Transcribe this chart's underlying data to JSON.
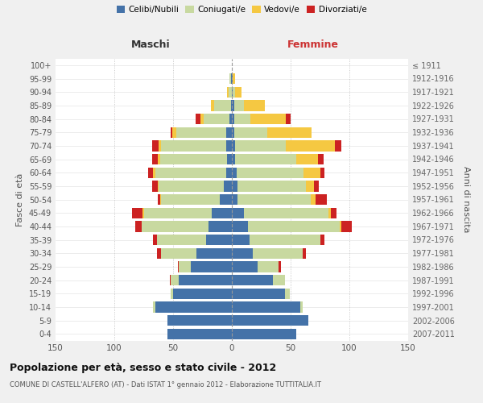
{
  "age_groups": [
    "0-4",
    "5-9",
    "10-14",
    "15-19",
    "20-24",
    "25-29",
    "30-34",
    "35-39",
    "40-44",
    "45-49",
    "50-54",
    "55-59",
    "60-64",
    "65-69",
    "70-74",
    "75-79",
    "80-84",
    "85-89",
    "90-94",
    "95-99",
    "100+"
  ],
  "birth_years": [
    "2007-2011",
    "2002-2006",
    "1997-2001",
    "1992-1996",
    "1987-1991",
    "1982-1986",
    "1977-1981",
    "1972-1976",
    "1967-1971",
    "1962-1966",
    "1957-1961",
    "1952-1956",
    "1947-1951",
    "1942-1946",
    "1937-1941",
    "1932-1936",
    "1927-1931",
    "1922-1926",
    "1917-1921",
    "1912-1916",
    "≤ 1911"
  ],
  "males": {
    "celibi": [
      55,
      55,
      65,
      50,
      45,
      35,
      30,
      22,
      20,
      17,
      10,
      7,
      5,
      4,
      5,
      5,
      2,
      1,
      0,
      1,
      0
    ],
    "coniugati": [
      0,
      0,
      2,
      2,
      7,
      10,
      30,
      42,
      57,
      58,
      50,
      55,
      60,
      57,
      55,
      42,
      22,
      14,
      3,
      1,
      0
    ],
    "vedovi": [
      0,
      0,
      0,
      0,
      0,
      0,
      0,
      0,
      0,
      1,
      1,
      1,
      2,
      2,
      2,
      4,
      3,
      3,
      1,
      0,
      0
    ],
    "divorziati": [
      0,
      0,
      0,
      0,
      1,
      1,
      4,
      3,
      5,
      9,
      2,
      5,
      4,
      5,
      6,
      1,
      4,
      0,
      0,
      0,
      0
    ]
  },
  "females": {
    "nubili": [
      55,
      65,
      58,
      45,
      35,
      22,
      18,
      15,
      14,
      10,
      5,
      5,
      4,
      3,
      3,
      2,
      2,
      2,
      1,
      1,
      0
    ],
    "coniugate": [
      0,
      0,
      2,
      4,
      10,
      18,
      42,
      60,
      78,
      72,
      62,
      58,
      57,
      52,
      43,
      28,
      14,
      8,
      2,
      0,
      0
    ],
    "vedove": [
      0,
      0,
      0,
      0,
      0,
      0,
      0,
      0,
      1,
      2,
      4,
      7,
      14,
      18,
      42,
      38,
      30,
      18,
      5,
      2,
      0
    ],
    "divorziate": [
      0,
      0,
      0,
      0,
      0,
      2,
      3,
      4,
      9,
      5,
      10,
      4,
      4,
      5,
      5,
      0,
      4,
      0,
      0,
      0,
      0
    ]
  },
  "colors": {
    "celibi": "#4472a8",
    "coniugati": "#c8d9a0",
    "vedovi": "#f5c842",
    "divorziati": "#cc2222"
  },
  "legend_labels": [
    "Celibi/Nubili",
    "Coniugati/e",
    "Vedovi/e",
    "Divorziati/e"
  ],
  "title": "Popolazione per età, sesso e stato civile - 2012",
  "subtitle": "COMUNE DI CASTELL'ALFERO (AT) - Dati ISTAT 1° gennaio 2012 - Elaborazione TUTTITALIA.IT",
  "xlabel_left": "Maschi",
  "xlabel_right": "Femmine",
  "ylabel_left": "Fasce di età",
  "ylabel_right": "Anni di nascita",
  "xlim": 150,
  "bg_color": "#f0f0f0",
  "plot_bg": "#ffffff",
  "grid_color": "#bbbbbb"
}
